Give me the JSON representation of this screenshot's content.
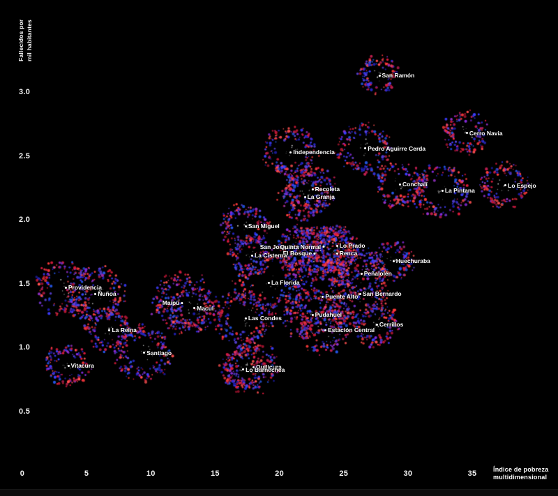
{
  "axes": {
    "y_label_line1": "Fallecidos por",
    "y_label_line2": "mil habitantes",
    "x_label_line1": "Índice de pobreza",
    "x_label_line2": "multidimensional",
    "y_ticks": [
      "3.0",
      "2.5",
      "2.0",
      "1.5",
      "1.0",
      "0.5"
    ],
    "x_ticks": [
      "0",
      "5",
      "10",
      "15",
      "20",
      "25",
      "30",
      "35"
    ]
  },
  "colors": {
    "background": "#000000",
    "text": "#ffffff",
    "dot_reds": [
      "#e11b3c",
      "#ff3b3b",
      "#c41f53",
      "#a81430",
      "#ff5050"
    ],
    "dot_blues": [
      "#2b2bd6",
      "#3d3dff",
      "#2456e8",
      "#5a43e0",
      "#1f1fb0"
    ],
    "dot_purples": [
      "#8a2be2",
      "#6a2fc0",
      "#9932cc"
    ]
  },
  "chart_data": {
    "type": "scatter",
    "title": "",
    "xlabel": "Índice de pobreza multidimensional",
    "ylabel": "Fallecidos por mil habitantes",
    "xlim": [
      0,
      40
    ],
    "ylim": [
      0.35,
      3.35
    ],
    "x_tick_values": [
      0,
      5,
      10,
      15,
      20,
      25,
      30,
      35
    ],
    "y_tick_values": [
      3.0,
      2.5,
      2.0,
      1.5,
      1.0,
      0.5
    ],
    "grid": false,
    "legend": null,
    "point_style": "ring-burst of small red/blue/purple dots around a white labeled center",
    "series": [
      {
        "name": "San Ramón",
        "x": 27.7,
        "y": 3.13,
        "ring_radius_px": 27,
        "label_side": "right"
      },
      {
        "name": "Cerro Navia",
        "x": 34.5,
        "y": 2.68,
        "ring_radius_px": 30,
        "label_side": "right"
      },
      {
        "name": "Pedro Aguirre Cerda",
        "x": 26.6,
        "y": 2.56,
        "ring_radius_px": 36,
        "label_side": "right"
      },
      {
        "name": "Independencia",
        "x": 20.8,
        "y": 2.53,
        "ring_radius_px": 36,
        "label_side": "right"
      },
      {
        "name": "Conchalí",
        "x": 29.3,
        "y": 2.28,
        "ring_radius_px": 32,
        "label_side": "right"
      },
      {
        "name": "Lo Espejo",
        "x": 37.5,
        "y": 2.27,
        "ring_radius_px": 32,
        "label_side": "right"
      },
      {
        "name": "Recoleta",
        "x": 22.5,
        "y": 2.24,
        "ring_radius_px": 34,
        "label_side": "right"
      },
      {
        "name": "La Pintana",
        "x": 32.6,
        "y": 2.23,
        "ring_radius_px": 38,
        "label_side": "right"
      },
      {
        "name": "La Granja",
        "x": 21.9,
        "y": 2.18,
        "ring_radius_px": 34,
        "label_side": "right"
      },
      {
        "name": "San Miguel",
        "x": 17.3,
        "y": 1.95,
        "ring_radius_px": 32,
        "label_side": "right"
      },
      {
        "name": "Lo Prado",
        "x": 24.4,
        "y": 1.8,
        "ring_radius_px": 28,
        "label_side": "right"
      },
      {
        "name": "San Joaquín",
        "x": 21.5,
        "y": 1.79,
        "ring_radius_px": 30,
        "label_side": "left"
      },
      {
        "name": "Quinta Normal",
        "x": 23.5,
        "y": 1.79,
        "ring_radius_px": 32,
        "label_side": "left"
      },
      {
        "name": "Renca",
        "x": 24.4,
        "y": 1.74,
        "ring_radius_px": 30,
        "label_side": "right"
      },
      {
        "name": "El Bosque",
        "x": 22.8,
        "y": 1.74,
        "ring_radius_px": 34,
        "label_side": "left"
      },
      {
        "name": "La Cisterna",
        "x": 17.8,
        "y": 1.72,
        "ring_radius_px": 30,
        "label_side": "right"
      },
      {
        "name": "Huechuraba",
        "x": 28.8,
        "y": 1.68,
        "ring_radius_px": 28,
        "label_side": "right"
      },
      {
        "name": "Peñalolén",
        "x": 26.3,
        "y": 1.58,
        "ring_radius_px": 36,
        "label_side": "right"
      },
      {
        "name": "La Florida",
        "x": 19.1,
        "y": 1.51,
        "ring_radius_px": 44,
        "label_side": "right"
      },
      {
        "name": "Providencia",
        "x": 3.3,
        "y": 1.47,
        "ring_radius_px": 38,
        "label_side": "right"
      },
      {
        "name": "San Bernardo",
        "x": 26.2,
        "y": 1.42,
        "ring_radius_px": 40,
        "label_side": "right"
      },
      {
        "name": "Ñuñoa",
        "x": 5.6,
        "y": 1.42,
        "ring_radius_px": 40,
        "label_side": "right"
      },
      {
        "name": "Puente Alto",
        "x": 23.3,
        "y": 1.4,
        "ring_radius_px": 46,
        "label_side": "right"
      },
      {
        "name": "Maipú",
        "x": 12.5,
        "y": 1.35,
        "ring_radius_px": 42,
        "label_side": "left"
      },
      {
        "name": "Macul",
        "x": 13.3,
        "y": 1.31,
        "ring_radius_px": 33,
        "label_side": "right"
      },
      {
        "name": "Pudahuel",
        "x": 22.5,
        "y": 1.26,
        "ring_radius_px": 38,
        "label_side": "right"
      },
      {
        "name": "Las Condes",
        "x": 17.3,
        "y": 1.23,
        "ring_radius_px": 40,
        "label_side": "right"
      },
      {
        "name": "Cerrillos",
        "x": 27.5,
        "y": 1.18,
        "ring_radius_px": 30,
        "label_side": "right"
      },
      {
        "name": "La Reina",
        "x": 6.7,
        "y": 1.14,
        "ring_radius_px": 30,
        "label_side": "right"
      },
      {
        "name": "Estación Central",
        "x": 23.5,
        "y": 1.14,
        "ring_radius_px": 33,
        "label_side": "right"
      },
      {
        "name": "Santiago",
        "x": 9.4,
        "y": 0.96,
        "ring_radius_px": 40,
        "label_side": "right"
      },
      {
        "name": "Vitacura",
        "x": 3.5,
        "y": 0.86,
        "ring_radius_px": 30,
        "label_side": "right"
      },
      {
        "name": "Quilicura",
        "x": 17.9,
        "y": 0.85,
        "ring_radius_px": 36,
        "label_side": "right"
      },
      {
        "name": "Lo Barnechea",
        "x": 17.1,
        "y": 0.83,
        "ring_radius_px": 30,
        "label_side": "right"
      }
    ]
  }
}
